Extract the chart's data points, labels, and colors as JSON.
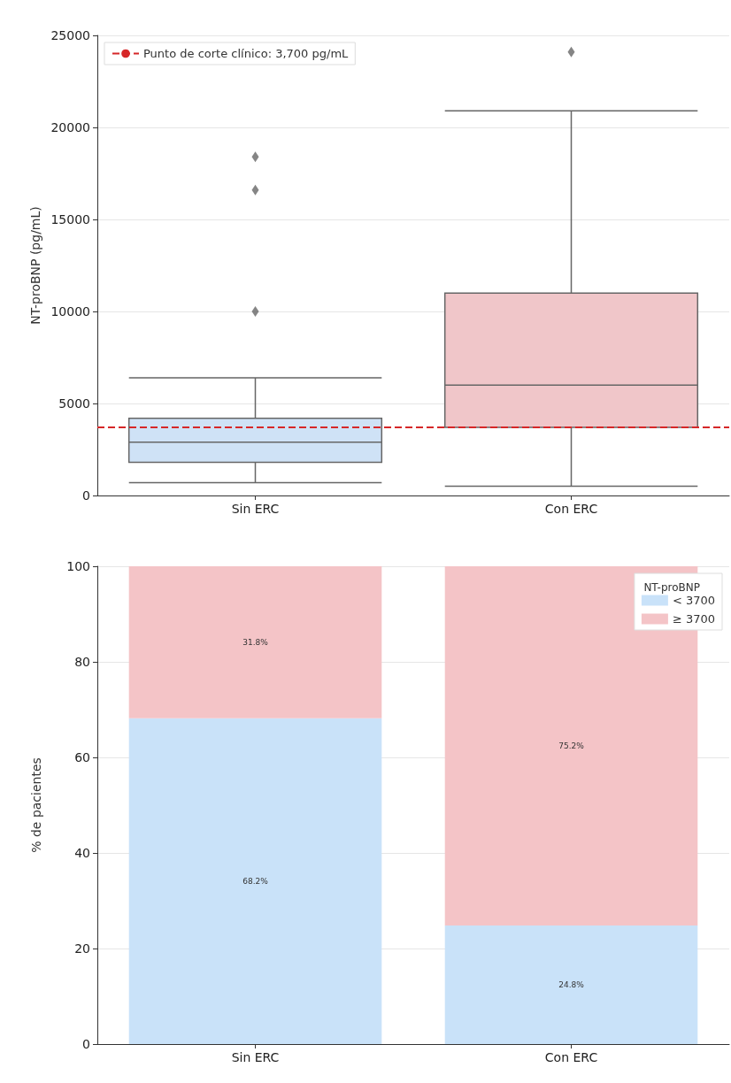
{
  "chart_data": [
    {
      "type": "box",
      "ylabel": "NT-proBNP (pg/mL)",
      "categories": [
        "Sin ERC",
        "Con ERC"
      ],
      "boxes": [
        {
          "low": 700,
          "q1": 1800,
          "median": 2900,
          "q3": 4200,
          "high": 6400,
          "outliers": [
            10000,
            16600,
            18400
          ]
        },
        {
          "low": 500,
          "q1": 3700,
          "median": 6000,
          "q3": 11000,
          "high": 20900,
          "outliers": [
            24100
          ]
        }
      ],
      "colors": [
        "#cfe2f6",
        "#f0c6c9"
      ],
      "ylim": [
        0,
        25000
      ],
      "yticks": [
        0,
        5000,
        10000,
        15000,
        20000,
        25000
      ],
      "grid": "y",
      "marker": "diamond",
      "ref_lines": [
        {
          "axis": "y",
          "value": 3700,
          "label": "Punto de corte clínico: 3,700 pg/mL",
          "color": "#d62728",
          "line_style": "dashed"
        }
      ],
      "legend": "top left"
    },
    {
      "type": "bar",
      "stacked": true,
      "ylabel": "% de pacientes",
      "categories": [
        "Sin ERC",
        "Con ERC"
      ],
      "legend_title": "NT-proBNP",
      "series": [
        {
          "name": "< 3700",
          "color": "#c9e2f9",
          "values": [
            68.2,
            24.8
          ],
          "value_labels": [
            "68.2%",
            "24.8%"
          ]
        },
        {
          "name": "≥ 3700",
          "color": "#f4c4c7",
          "values": [
            31.8,
            75.2
          ],
          "value_labels": [
            "31.8%",
            "75.2%"
          ]
        }
      ],
      "ylim": [
        0,
        100
      ],
      "yticks": [
        0,
        20,
        40,
        60,
        80,
        100
      ],
      "grid": true,
      "legend": "top right"
    }
  ]
}
